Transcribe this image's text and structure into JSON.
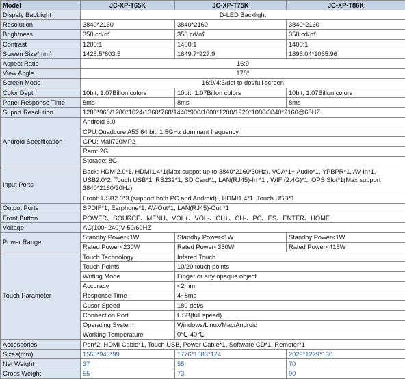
{
  "table": {
    "header": [
      "Model",
      "JC-XP-T65K",
      "JC-XP-T75K",
      "JC-XP-T86K"
    ],
    "rows": [
      [
        "Dispaly Backlight",
        "D-LED Backlight"
      ],
      [
        "Resolution",
        "3840*2160",
        "3840*2160",
        "3840*2160"
      ],
      [
        "Brightness",
        "350 cd/㎡",
        "350 cd/㎡",
        "350 cd/㎡"
      ],
      [
        "Contrast",
        "1200:1",
        "1400:1",
        "1400:1"
      ],
      [
        "Screen Size(mm)",
        "1428.5*803.5",
        "1649.7*927.9",
        "1895.04*1065.96"
      ],
      [
        "Aspect Ratio",
        "16:9"
      ],
      [
        "View Angle",
        "178°"
      ],
      [
        "Screen Mode",
        "16:9/4:3/dot to dot/full screen"
      ],
      [
        "Color Depth",
        "10bit, 1.07Billon colors",
        "10bit, 1.07Billon colors",
        "10bit, 1.07Billon colors"
      ],
      [
        "Panel Response Time",
        "8ms",
        "8ms",
        "8ms"
      ],
      [
        "Suport Resolution",
        "1280*960/1280*1024/1360*768/1440*900/1600*1200/1920*1080/3840*2160@60HZ"
      ],
      [
        "Android Specification",
        [
          "Android 6.0",
          "CPU:Quadcore A53 64 bit,  1.5GHz dominant frequency",
          "GPU: Mali720MP2",
          "Ram: 2G",
          "Storage: 8G"
        ]
      ],
      [
        "Input Ports",
        [
          "Back: HDMI2.0*1, HDMI1.4*1(Max suppot up to 3840*2160/30Hz), VGA*1+ Audio*1,  YPBPR*1, AV-In*1, USB2.0*2, Touch USB*1, RS232*1, SD Card*1, LAN(RJ45)-In *1 , WIFI(2.4G)*1, OPS Slot*1(Max support 3840*2160/30Hz)",
          "Front: USB2.0*3 (support both PC and Android) , HDMI1.4*1, Touch USB*1"
        ]
      ],
      [
        "Output Ports",
        "SPDIF*1, Earphone*1, AV-Out*1, LAN(RJ45)-Out *1"
      ],
      [
        "Front Button",
        "POWER、SOURCE、MENU、VOL+、VOL-、CH+、CH-、PC、ES、ENTER、HOME"
      ],
      [
        "Voltage",
        "AC(100~240)V-50/60HZ"
      ],
      [
        "Power Range",
        [
          [
            "Standby Power<1W",
            "Standby Power<1W",
            "Standby Power<1W"
          ],
          [
            "Rated Power<230W",
            "Rated Power<350W",
            "Rated Power<415W"
          ]
        ]
      ],
      [
        "Touch Parameter",
        [
          [
            "Touch Technology",
            "Infared Touch"
          ],
          [
            "Touch Points",
            "10/20 touch points"
          ],
          [
            "Writing Mode",
            "Finger or any opaque object"
          ],
          [
            "Accuracy",
            "<2mm"
          ],
          [
            "Response Time",
            "4~8ms"
          ],
          [
            "Cusor Speed",
            "180 dot/s"
          ],
          [
            "Connection Port",
            "USB(full speed)"
          ],
          [
            "Operating System",
            "Windows/Linux/Mac/Android"
          ],
          [
            "Working Temperature",
            "0℃-40℃"
          ]
        ]
      ],
      [
        "Accessories",
        "Pen*2, HDMI Cable*1, Touch USB, Power Cable*1, Software CD*1, Remoter*1"
      ],
      [
        "Sizes(mm)",
        "1555*943*99",
        "1776*1083*124",
        "2029*1229*130"
      ],
      [
        "Net Weight",
        "37",
        "55",
        "70"
      ],
      [
        "Gross Weight",
        "55",
        "73",
        "90"
      ]
    ]
  }
}
